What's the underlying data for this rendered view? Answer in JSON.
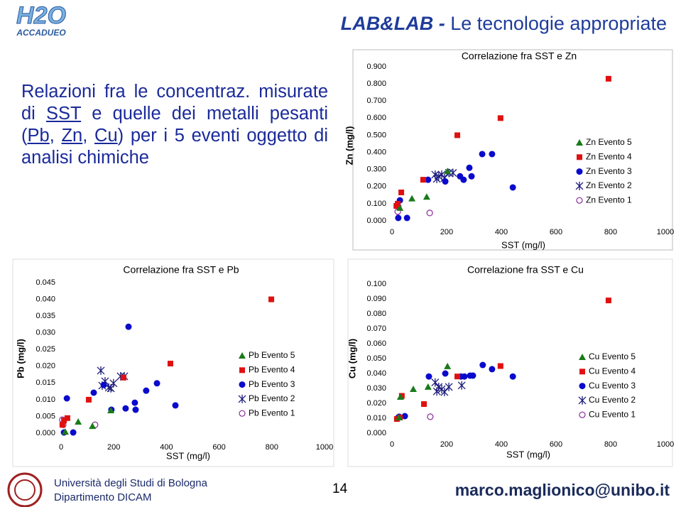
{
  "logo": {
    "text": "H2O",
    "subtext": "ACCADUEO"
  },
  "header": {
    "strong": "LAB&LAB - ",
    "title": "Le tecnologie appropriate"
  },
  "body": [
    {
      "text": "Relazioni fra le concentraz. misurate di "
    },
    {
      "text": "SST",
      "underline": true
    },
    {
      "text": " e quelle dei metalli pesanti ("
    },
    {
      "text": "Pb",
      "underline": true
    },
    {
      "text": ", "
    },
    {
      "text": "Zn",
      "underline": true
    },
    {
      "text": ", "
    },
    {
      "text": "Cu",
      "underline": true
    },
    {
      "text": ") per i 5 eventi oggetto di analisi chimiche"
    }
  ],
  "footer": {
    "university": "Università  degli Studi di Bologna",
    "department": "Dipartimento DICAM",
    "page": "14",
    "email": "marco.maglionico@unibo.it"
  },
  "chart_data": [
    {
      "type": "scatter",
      "title": "Correlazione fra SST e Zn",
      "x_label": "SST (mg/l)",
      "y_label": "Zn (mg/l)",
      "legend": "right",
      "xlim": [
        0,
        1000
      ],
      "xticks": [
        0,
        200,
        400,
        600,
        800,
        1000
      ],
      "ylim": [
        0,
        0.9
      ],
      "yticks": [
        {
          "value": 0,
          "label": "0.000"
        },
        {
          "value": 0.1,
          "label": "0.100"
        },
        {
          "value": 0.2,
          "label": "0.200"
        },
        {
          "value": 0.3,
          "label": "0.300"
        },
        {
          "value": 0.4,
          "label": "0.400"
        },
        {
          "value": 0.5,
          "label": "0.500"
        },
        {
          "value": 0.6,
          "label": "0.600"
        },
        {
          "value": 0.7,
          "label": "0.700"
        },
        {
          "value": 0.8,
          "label": "0.800"
        },
        {
          "value": 0.9,
          "label": "0.900"
        }
      ],
      "series": [
        {
          "name": "Zn Evento 5",
          "color": "#1a7a1a",
          "marker": "triangle",
          "x": [
            29,
            73,
            127,
            203
          ],
          "values": [
            0.075,
            0.13,
            0.14,
            0.29
          ]
        },
        {
          "name": "Zn Evento 4",
          "color": "#e01010",
          "marker": "square",
          "x": [
            16,
            34,
            114,
            239,
            397,
            792,
            21
          ],
          "values": [
            0.087,
            0.166,
            0.24,
            0.5,
            0.6,
            0.83,
            0.1
          ]
        },
        {
          "name": "Zn Evento 3",
          "color": "#0a0acc",
          "marker": "circle",
          "x": [
            23,
            55,
            29,
            132,
            195,
            249,
            262,
            283,
            291,
            330,
            366,
            442
          ],
          "values": [
            0.017,
            0.017,
            0.12,
            0.24,
            0.23,
            0.26,
            0.24,
            0.31,
            0.26,
            0.39,
            0.39,
            0.195
          ]
        },
        {
          "name": "Zn Evento 2",
          "color": "#1a1a7a",
          "marker": "star",
          "x": [
            158,
            171,
            182,
            192,
            208,
            223,
            164
          ],
          "values": [
            0.27,
            0.26,
            0.27,
            0.25,
            0.28,
            0.28,
            0.245
          ]
        },
        {
          "name": "Zn Evento 1",
          "color": "#8a2a9a",
          "marker": "open-circle",
          "x": [
            21,
            138,
            23
          ],
          "values": [
            0.054,
            0.046,
            0.083
          ]
        }
      ]
    },
    {
      "type": "scatter",
      "title": "Correlazione fra SST e Pb",
      "x_label": "SST (mg/l)",
      "y_label": "Pb (mg/l)",
      "legend": "right",
      "xlim": [
        0,
        1000
      ],
      "xticks": [
        0,
        200,
        400,
        600,
        800,
        1000
      ],
      "ylim": [
        0,
        0.045
      ],
      "yticks": [
        {
          "value": 0,
          "label": "0.000"
        },
        {
          "value": 0.005,
          "label": "0.005"
        },
        {
          "value": 0.01,
          "label": "0.010"
        },
        {
          "value": 0.015,
          "label": "0.015"
        },
        {
          "value": 0.02,
          "label": "0.020"
        },
        {
          "value": 0.025,
          "label": "0.025"
        },
        {
          "value": 0.03,
          "label": "0.030"
        },
        {
          "value": 0.035,
          "label": "0.035"
        },
        {
          "value": 0.04,
          "label": "0.040"
        },
        {
          "value": 0.045,
          "label": "0.045"
        }
      ],
      "series": [
        {
          "name": "Pb Evento 5",
          "color": "#1a7a1a",
          "marker": "triangle",
          "x": [
            65,
            119,
            189,
            16
          ],
          "values": [
            0.0034,
            0.0021,
            0.0068,
            0.0004
          ]
        },
        {
          "name": "Pb Evento 4",
          "color": "#e01010",
          "marker": "square",
          "x": [
            5,
            24,
            105,
            237,
            415,
            798,
            11
          ],
          "values": [
            0.0025,
            0.0045,
            0.01,
            0.0166,
            0.0208,
            0.04,
            0.0038
          ]
        },
        {
          "name": "Pb Evento 3",
          "color": "#0a0acc",
          "marker": "circle",
          "x": [
            22,
            124,
            162,
            191,
            245,
            256,
            280,
            283,
            323,
            364,
            434,
            11,
            46
          ],
          "values": [
            0.0104,
            0.0121,
            0.0144,
            0.007,
            0.0074,
            0.0318,
            0.0091,
            0.007,
            0.0127,
            0.0149,
            0.0083,
            0.0002,
            0.0002
          ]
        },
        {
          "name": "Pb Evento 2",
          "color": "#1a1a7a",
          "marker": "star",
          "x": [
            151,
            156,
            167,
            181,
            189,
            199,
            226,
            240
          ],
          "values": [
            0.0187,
            0.0142,
            0.0155,
            0.0136,
            0.0134,
            0.0149,
            0.017,
            0.017
          ]
        },
        {
          "name": "Pb Evento 1",
          "color": "#8a2a9a",
          "marker": "open-circle",
          "x": [
            8,
            129,
            5
          ],
          "values": [
            0.0025,
            0.0025,
            0.004
          ]
        }
      ]
    },
    {
      "type": "scatter",
      "title": "Correlazione fra SST e Cu",
      "x_label": "SST (mg/l)",
      "y_label": "Cu (mg/l)",
      "legend": "right",
      "xlim": [
        0,
        1000
      ],
      "xticks": [
        0,
        200,
        400,
        600,
        800,
        1000
      ],
      "ylim": [
        0,
        0.1
      ],
      "yticks": [
        {
          "value": 0,
          "label": "0.000"
        },
        {
          "value": 0.01,
          "label": "0.010"
        },
        {
          "value": 0.02,
          "label": "0.020"
        },
        {
          "value": 0.03,
          "label": "0.030"
        },
        {
          "value": 0.04,
          "label": "0.040"
        },
        {
          "value": 0.05,
          "label": "0.050"
        },
        {
          "value": 0.06,
          "label": "0.060"
        },
        {
          "value": 0.07,
          "label": "0.070"
        },
        {
          "value": 0.08,
          "label": "0.080"
        },
        {
          "value": 0.09,
          "label": "0.090"
        },
        {
          "value": 0.1,
          "label": "0.100"
        }
      ],
      "series": [
        {
          "name": "Cu Evento 5",
          "color": "#1a7a1a",
          "marker": "triangle",
          "x": [
            31,
            78,
            132,
            203,
            26
          ],
          "values": [
            0.0243,
            0.0295,
            0.031,
            0.0448,
            0.0105
          ]
        },
        {
          "name": "Cu Evento 4",
          "color": "#e01010",
          "marker": "square",
          "x": [
            18,
            36,
            117,
            239,
            397,
            792,
            29
          ],
          "values": [
            0.0095,
            0.025,
            0.0195,
            0.038,
            0.045,
            0.089,
            0.0105
          ]
        },
        {
          "name": "Cu Evento 3",
          "color": "#0a0acc",
          "marker": "circle",
          "x": [
            26,
            47,
            135,
            195,
            252,
            265,
            286,
            296,
            332,
            366,
            442
          ],
          "values": [
            0.011,
            0.0114,
            0.038,
            0.04,
            0.038,
            0.038,
            0.0386,
            0.0386,
            0.0457,
            0.0429,
            0.038
          ]
        },
        {
          "name": "Cu Evento 2",
          "color": "#1a1a7a",
          "marker": "star",
          "x": [
            158,
            171,
            182,
            192,
            208,
            255,
            164
          ],
          "values": [
            0.034,
            0.031,
            0.0295,
            0.0276,
            0.031,
            0.032,
            0.028
          ]
        },
        {
          "name": "Cu Evento 1",
          "color": "#8a2a9a",
          "marker": "open-circle",
          "x": [
            23,
            140
          ],
          "values": [
            0.0105,
            0.011
          ]
        }
      ]
    }
  ]
}
